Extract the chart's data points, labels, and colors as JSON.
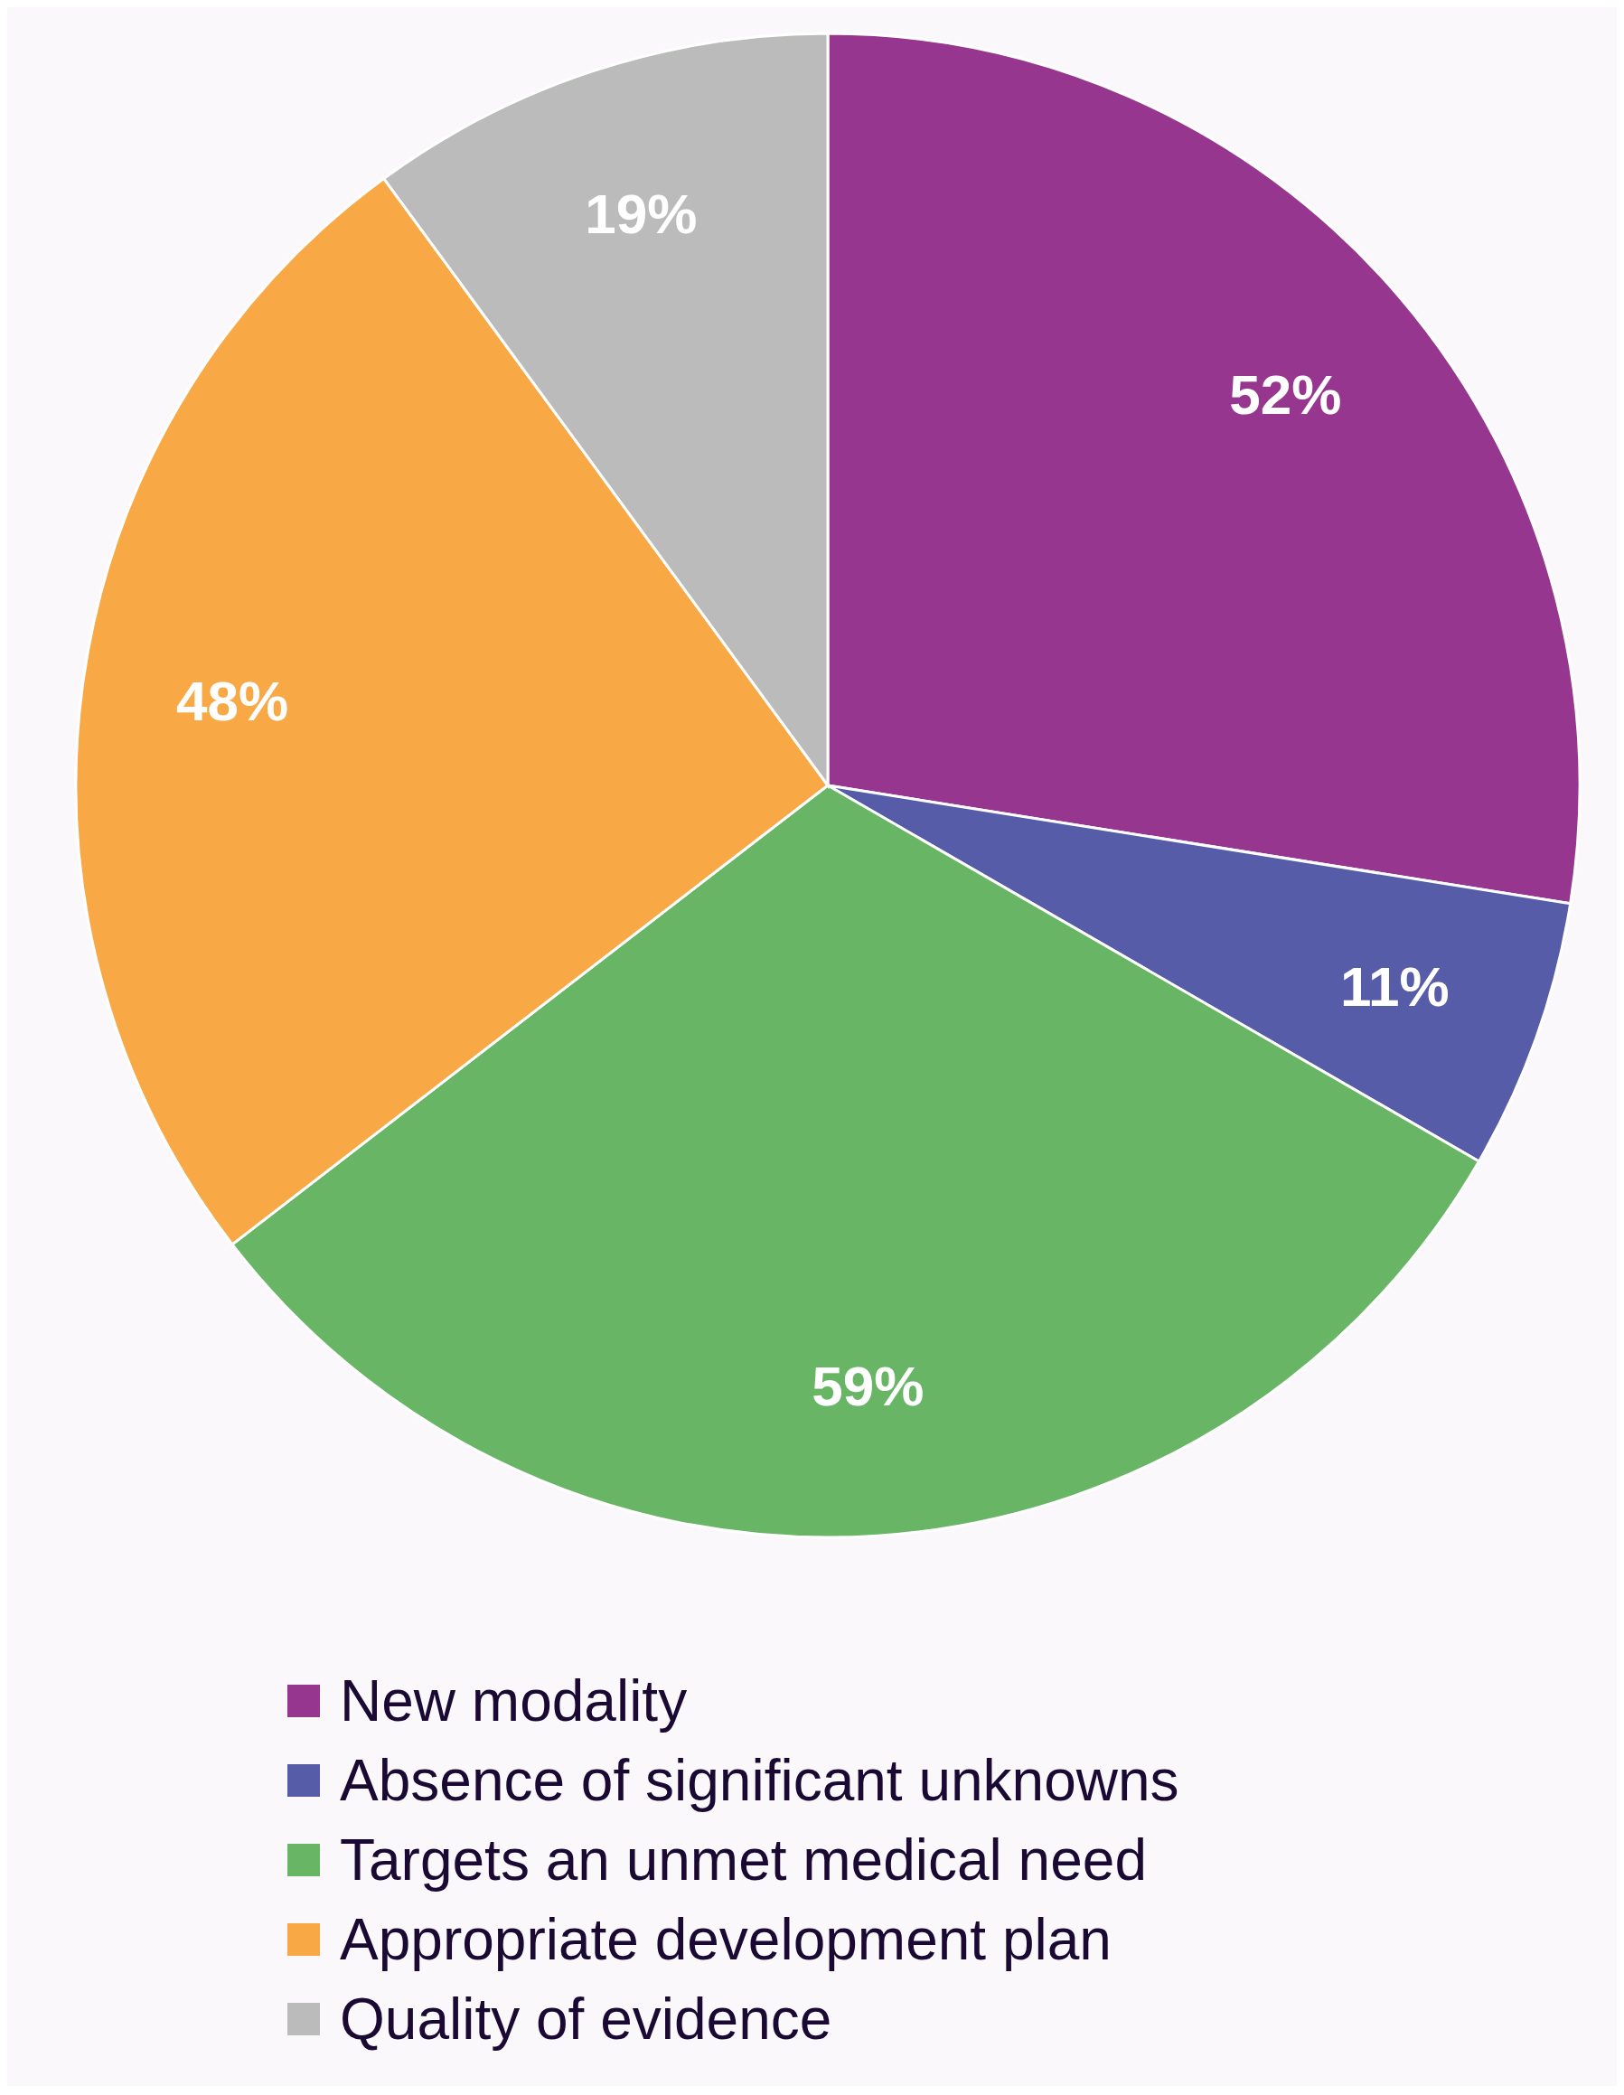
{
  "chart_data": {
    "type": "pie",
    "categories": [
      "New modality",
      "Absence of significant unknowns",
      "Targets an unmet medical need",
      "Appropriate development plan",
      "Quality of evidence"
    ],
    "values": [
      52,
      11,
      59,
      48,
      19
    ],
    "colors": [
      "#97368f",
      "#575ca8",
      "#67b565",
      "#f9a846",
      "#bbbbbb"
    ],
    "value_labels": [
      "52%",
      "11%",
      "59%",
      "48%",
      "19%"
    ],
    "legend": "bottom"
  }
}
